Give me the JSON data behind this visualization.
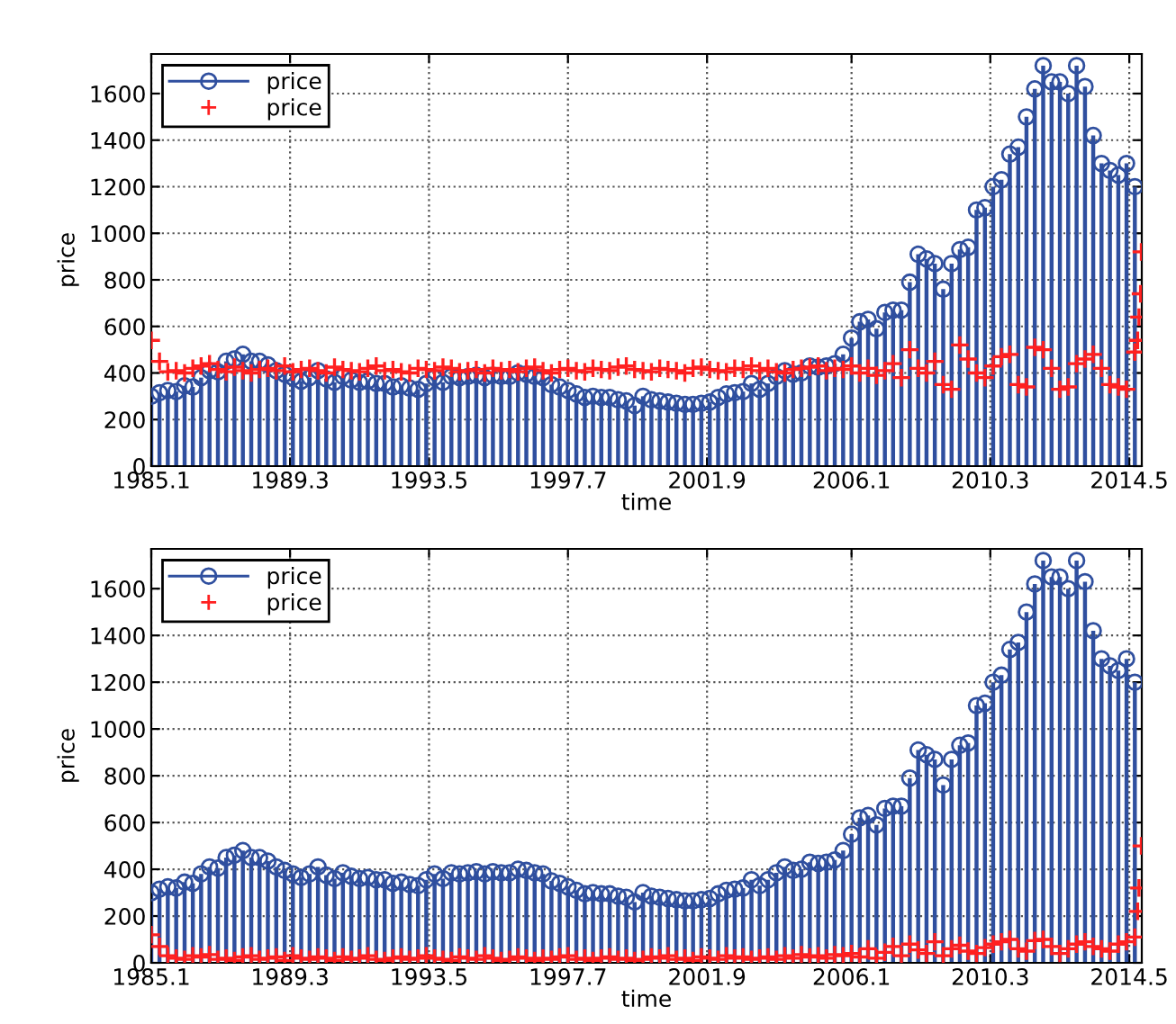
{
  "chart_data": [
    {
      "type": "lollipop",
      "xlabel": "time",
      "ylabel": "price",
      "xlim": [
        "1985-01",
        "2014-09-15"
      ],
      "ylim": [
        0,
        1770
      ],
      "xticks": [
        {
          "value": "1985-01",
          "label": "1985.1"
        },
        {
          "value": "1989-03",
          "label": "1989.3"
        },
        {
          "value": "1993-05",
          "label": "1993.5"
        },
        {
          "value": "1997-07",
          "label": "1997.7"
        },
        {
          "value": "2001-09",
          "label": "2001.9"
        },
        {
          "value": "2006-01",
          "label": "2006.1"
        },
        {
          "value": "2010-03",
          "label": "2010.3"
        },
        {
          "value": "2014-05",
          "label": "2014.5"
        }
      ],
      "yticks": [
        0,
        200,
        400,
        600,
        800,
        1000,
        1200,
        1400,
        1600
      ],
      "grid": true,
      "legend": "top left",
      "series": [
        {
          "name": "price",
          "marker": "circle",
          "color": "#2f4f9f",
          "x": [
            "1985-01",
            "1985-04",
            "1985-07",
            "1985-10",
            "1986-01",
            "1986-04",
            "1986-07",
            "1986-10",
            "1987-01",
            "1987-04",
            "1987-07",
            "1987-10",
            "1988-01",
            "1988-04",
            "1988-07",
            "1988-10",
            "1989-01",
            "1989-04",
            "1989-07",
            "1989-10",
            "1990-01",
            "1990-04",
            "1990-07",
            "1990-10",
            "1991-01",
            "1991-04",
            "1991-07",
            "1991-10",
            "1992-01",
            "1992-04",
            "1992-07",
            "1992-10",
            "1993-01",
            "1993-04",
            "1993-07",
            "1993-10",
            "1994-01",
            "1994-04",
            "1994-07",
            "1994-10",
            "1995-01",
            "1995-04",
            "1995-07",
            "1995-10",
            "1996-01",
            "1996-04",
            "1996-07",
            "1996-10",
            "1997-01",
            "1997-04",
            "1997-07",
            "1997-10",
            "1998-01",
            "1998-04",
            "1998-07",
            "1998-10",
            "1999-01",
            "1999-04",
            "1999-07",
            "1999-10",
            "2000-01",
            "2000-04",
            "2000-07",
            "2000-10",
            "2001-01",
            "2001-04",
            "2001-07",
            "2001-10",
            "2002-01",
            "2002-04",
            "2002-07",
            "2002-10",
            "2003-01",
            "2003-04",
            "2003-07",
            "2003-10",
            "2004-01",
            "2004-04",
            "2004-07",
            "2004-10",
            "2005-01",
            "2005-04",
            "2005-07",
            "2005-10",
            "2006-01",
            "2006-04",
            "2006-07",
            "2006-10",
            "2007-01",
            "2007-04",
            "2007-07",
            "2007-10",
            "2008-01",
            "2008-04",
            "2008-07",
            "2008-10",
            "2009-01",
            "2009-04",
            "2009-07",
            "2009-10",
            "2010-01",
            "2010-04",
            "2010-07",
            "2010-10",
            "2011-01",
            "2011-04",
            "2011-07",
            "2011-10",
            "2012-01",
            "2012-04",
            "2012-07",
            "2012-10",
            "2013-01",
            "2013-04",
            "2013-07",
            "2013-10",
            "2014-01",
            "2014-04",
            "2014-07"
          ],
          "values": [
            300,
            315,
            325,
            320,
            345,
            340,
            380,
            410,
            405,
            450,
            460,
            480,
            450,
            450,
            435,
            410,
            395,
            380,
            365,
            380,
            410,
            375,
            360,
            385,
            370,
            360,
            365,
            355,
            355,
            340,
            345,
            335,
            330,
            355,
            380,
            360,
            385,
            380,
            385,
            390,
            380,
            390,
            385,
            385,
            400,
            395,
            385,
            380,
            350,
            340,
            325,
            310,
            295,
            300,
            295,
            295,
            285,
            280,
            260,
            300,
            285,
            280,
            275,
            270,
            265,
            265,
            270,
            275,
            295,
            310,
            315,
            320,
            355,
            330,
            355,
            385,
            410,
            395,
            400,
            430,
            425,
            430,
            440,
            480,
            550,
            620,
            630,
            590,
            660,
            670,
            670,
            790,
            910,
            890,
            870,
            760,
            870,
            930,
            940,
            1100,
            1110,
            1200,
            1230,
            1340,
            1370,
            1500,
            1620,
            1720,
            1650,
            1650,
            1600,
            1720,
            1630,
            1420,
            1300,
            1270,
            1250,
            1300,
            1200
          ]
        },
        {
          "name": "price",
          "type": "scatter",
          "marker": "cross",
          "color": "#ff2020",
          "x": [
            "1985-01",
            "1985-04",
            "1985-07",
            "1985-10",
            "1986-01",
            "1986-04",
            "1986-07",
            "1986-10",
            "1987-01",
            "1987-04",
            "1987-07",
            "1987-10",
            "1988-01",
            "1988-04",
            "1988-07",
            "1988-10",
            "1989-01",
            "1989-04",
            "1989-07",
            "1989-10",
            "1990-01",
            "1990-04",
            "1990-07",
            "1990-10",
            "1991-01",
            "1991-04",
            "1991-07",
            "1991-10",
            "1992-01",
            "1992-04",
            "1992-07",
            "1992-10",
            "1993-01",
            "1993-04",
            "1993-07",
            "1993-10",
            "1994-01",
            "1994-04",
            "1994-07",
            "1994-10",
            "1995-01",
            "1995-04",
            "1995-07",
            "1995-10",
            "1996-01",
            "1996-04",
            "1996-07",
            "1996-10",
            "1997-01",
            "1997-04",
            "1997-07",
            "1997-10",
            "1998-01",
            "1998-04",
            "1998-07",
            "1998-10",
            "1999-01",
            "1999-04",
            "1999-07",
            "1999-10",
            "2000-01",
            "2000-04",
            "2000-07",
            "2000-10",
            "2001-01",
            "2001-04",
            "2001-07",
            "2001-10",
            "2002-01",
            "2002-04",
            "2002-07",
            "2002-10",
            "2003-01",
            "2003-04",
            "2003-07",
            "2003-10",
            "2004-01",
            "2004-04",
            "2004-07",
            "2004-10",
            "2005-01",
            "2005-04",
            "2005-07",
            "2005-10",
            "2006-01",
            "2006-04",
            "2006-07",
            "2006-10",
            "2007-01",
            "2007-04",
            "2007-07",
            "2007-10",
            "2008-01",
            "2008-04",
            "2008-07",
            "2008-10",
            "2009-01",
            "2009-04",
            "2009-07",
            "2009-10",
            "2010-01",
            "2010-04",
            "2010-07",
            "2010-10",
            "2011-01",
            "2011-04",
            "2011-07",
            "2011-10",
            "2012-01",
            "2012-04",
            "2012-07",
            "2012-10",
            "2013-01",
            "2013-04",
            "2013-07",
            "2013-10",
            "2014-01",
            "2014-04",
            "2014-07",
            "2014-08",
            "2014-08-15",
            "2014-09",
            "2014-09-10"
          ],
          "values": [
            540,
            450,
            405,
            410,
            400,
            420,
            430,
            440,
            415,
            405,
            425,
            410,
            400,
            415,
            420,
            410,
            430,
            405,
            415,
            420,
            410,
            400,
            425,
            415,
            410,
            405,
            420,
            430,
            410,
            415,
            405,
            400,
            420,
            415,
            410,
            425,
            420,
            405,
            410,
            415,
            400,
            420,
            410,
            415,
            405,
            420,
            425,
            410,
            400,
            415,
            420,
            410,
            405,
            420,
            415,
            410,
            425,
            430,
            415,
            410,
            405,
            420,
            415,
            410,
            400,
            420,
            425,
            415,
            410,
            405,
            420,
            415,
            430,
            410,
            420,
            405,
            400,
            415,
            420,
            425,
            430,
            410,
            420,
            415,
            430,
            400,
            420,
            390,
            410,
            440,
            380,
            500,
            420,
            400,
            450,
            350,
            330,
            520,
            460,
            400,
            380,
            430,
            470,
            480,
            350,
            340,
            510,
            500,
            420,
            330,
            340,
            440,
            460,
            480,
            420,
            350,
            340,
            330,
            490,
            540,
            640,
            740,
            920
          ]
        }
      ]
    },
    {
      "type": "lollipop",
      "xlabel": "time",
      "ylabel": "price",
      "xlim": [
        "1985-01",
        "2014-09-15"
      ],
      "ylim": [
        0,
        1770
      ],
      "xticks": [
        {
          "value": "1985-01",
          "label": "1985.1"
        },
        {
          "value": "1989-03",
          "label": "1989.3"
        },
        {
          "value": "1993-05",
          "label": "1993.5"
        },
        {
          "value": "1997-07",
          "label": "1997.7"
        },
        {
          "value": "2001-09",
          "label": "2001.9"
        },
        {
          "value": "2006-01",
          "label": "2006.1"
        },
        {
          "value": "2010-03",
          "label": "2010.3"
        },
        {
          "value": "2014-05",
          "label": "2014.5"
        }
      ],
      "yticks": [
        0,
        200,
        400,
        600,
        800,
        1000,
        1200,
        1400,
        1600
      ],
      "grid": true,
      "legend": "top left",
      "series": [
        {
          "name": "price",
          "marker": "circle",
          "color": "#2f4f9f",
          "x": [
            "1985-01",
            "1985-04",
            "1985-07",
            "1985-10",
            "1986-01",
            "1986-04",
            "1986-07",
            "1986-10",
            "1987-01",
            "1987-04",
            "1987-07",
            "1987-10",
            "1988-01",
            "1988-04",
            "1988-07",
            "1988-10",
            "1989-01",
            "1989-04",
            "1989-07",
            "1989-10",
            "1990-01",
            "1990-04",
            "1990-07",
            "1990-10",
            "1991-01",
            "1991-04",
            "1991-07",
            "1991-10",
            "1992-01",
            "1992-04",
            "1992-07",
            "1992-10",
            "1993-01",
            "1993-04",
            "1993-07",
            "1993-10",
            "1994-01",
            "1994-04",
            "1994-07",
            "1994-10",
            "1995-01",
            "1995-04",
            "1995-07",
            "1995-10",
            "1996-01",
            "1996-04",
            "1996-07",
            "1996-10",
            "1997-01",
            "1997-04",
            "1997-07",
            "1997-10",
            "1998-01",
            "1998-04",
            "1998-07",
            "1998-10",
            "1999-01",
            "1999-04",
            "1999-07",
            "1999-10",
            "2000-01",
            "2000-04",
            "2000-07",
            "2000-10",
            "2001-01",
            "2001-04",
            "2001-07",
            "2001-10",
            "2002-01",
            "2002-04",
            "2002-07",
            "2002-10",
            "2003-01",
            "2003-04",
            "2003-07",
            "2003-10",
            "2004-01",
            "2004-04",
            "2004-07",
            "2004-10",
            "2005-01",
            "2005-04",
            "2005-07",
            "2005-10",
            "2006-01",
            "2006-04",
            "2006-07",
            "2006-10",
            "2007-01",
            "2007-04",
            "2007-07",
            "2007-10",
            "2008-01",
            "2008-04",
            "2008-07",
            "2008-10",
            "2009-01",
            "2009-04",
            "2009-07",
            "2009-10",
            "2010-01",
            "2010-04",
            "2010-07",
            "2010-10",
            "2011-01",
            "2011-04",
            "2011-07",
            "2011-10",
            "2012-01",
            "2012-04",
            "2012-07",
            "2012-10",
            "2013-01",
            "2013-04",
            "2013-07",
            "2013-10",
            "2014-01",
            "2014-04",
            "2014-07"
          ],
          "values": [
            300,
            315,
            325,
            320,
            345,
            340,
            380,
            410,
            405,
            450,
            460,
            480,
            450,
            450,
            435,
            410,
            395,
            380,
            365,
            380,
            410,
            375,
            360,
            385,
            370,
            360,
            365,
            355,
            355,
            340,
            345,
            335,
            330,
            355,
            380,
            360,
            385,
            380,
            385,
            390,
            380,
            390,
            385,
            385,
            400,
            395,
            385,
            380,
            350,
            340,
            325,
            310,
            295,
            300,
            295,
            295,
            285,
            280,
            260,
            300,
            285,
            280,
            275,
            270,
            265,
            265,
            270,
            275,
            295,
            310,
            315,
            320,
            355,
            330,
            355,
            385,
            410,
            395,
            400,
            430,
            425,
            430,
            440,
            480,
            550,
            620,
            630,
            590,
            660,
            670,
            670,
            790,
            910,
            890,
            870,
            760,
            870,
            930,
            940,
            1100,
            1110,
            1200,
            1230,
            1340,
            1370,
            1500,
            1620,
            1720,
            1650,
            1650,
            1600,
            1720,
            1630,
            1420,
            1300,
            1270,
            1250,
            1300,
            1200
          ]
        },
        {
          "name": "price",
          "type": "scatter",
          "marker": "cross",
          "color": "#ff2020",
          "x": [
            "1985-01",
            "1985-04",
            "1985-07",
            "1985-10",
            "1986-01",
            "1986-04",
            "1986-07",
            "1986-10",
            "1987-01",
            "1987-04",
            "1987-07",
            "1987-10",
            "1988-01",
            "1988-04",
            "1988-07",
            "1988-10",
            "1989-01",
            "1989-04",
            "1989-07",
            "1989-10",
            "1990-01",
            "1990-04",
            "1990-07",
            "1990-10",
            "1991-01",
            "1991-04",
            "1991-07",
            "1991-10",
            "1992-01",
            "1992-04",
            "1992-07",
            "1992-10",
            "1993-01",
            "1993-04",
            "1993-07",
            "1993-10",
            "1994-01",
            "1994-04",
            "1994-07",
            "1994-10",
            "1995-01",
            "1995-04",
            "1995-07",
            "1995-10",
            "1996-01",
            "1996-04",
            "1996-07",
            "1996-10",
            "1997-01",
            "1997-04",
            "1997-07",
            "1997-10",
            "1998-01",
            "1998-04",
            "1998-07",
            "1998-10",
            "1999-01",
            "1999-04",
            "1999-07",
            "1999-10",
            "2000-01",
            "2000-04",
            "2000-07",
            "2000-10",
            "2001-01",
            "2001-04",
            "2001-07",
            "2001-10",
            "2002-01",
            "2002-04",
            "2002-07",
            "2002-10",
            "2003-01",
            "2003-04",
            "2003-07",
            "2003-10",
            "2004-01",
            "2004-04",
            "2004-07",
            "2004-10",
            "2005-01",
            "2005-04",
            "2005-07",
            "2005-10",
            "2006-01",
            "2006-04",
            "2006-07",
            "2006-10",
            "2007-01",
            "2007-04",
            "2007-07",
            "2007-10",
            "2008-01",
            "2008-04",
            "2008-07",
            "2008-10",
            "2009-01",
            "2009-04",
            "2009-07",
            "2009-10",
            "2010-01",
            "2010-04",
            "2010-07",
            "2010-10",
            "2011-01",
            "2011-04",
            "2011-07",
            "2011-10",
            "2012-01",
            "2012-04",
            "2012-07",
            "2012-10",
            "2013-01",
            "2013-04",
            "2013-07",
            "2013-10",
            "2014-01",
            "2014-04",
            "2014-07",
            "2014-08",
            "2014-08-15",
            "2014-09-10"
          ],
          "values": [
            120,
            70,
            30,
            20,
            15,
            30,
            25,
            35,
            15,
            20,
            10,
            25,
            30,
            15,
            20,
            25,
            10,
            30,
            20,
            15,
            25,
            20,
            10,
            25,
            15,
            20,
            30,
            15,
            10,
            20,
            25,
            15,
            20,
            30,
            20,
            15,
            10,
            25,
            20,
            15,
            30,
            20,
            10,
            15,
            25,
            20,
            10,
            20,
            15,
            25,
            30,
            15,
            20,
            10,
            20,
            25,
            15,
            20,
            10,
            15,
            25,
            20,
            30,
            15,
            20,
            10,
            25,
            20,
            15,
            30,
            20,
            25,
            15,
            20,
            25,
            15,
            30,
            20,
            35,
            25,
            30,
            20,
            35,
            30,
            40,
            25,
            60,
            20,
            45,
            70,
            30,
            80,
            55,
            40,
            90,
            30,
            60,
            75,
            50,
            40,
            65,
            80,
            90,
            100,
            60,
            50,
            95,
            100,
            70,
            40,
            60,
            80,
            90,
            70,
            60,
            50,
            80,
            90,
            110,
            220,
            320,
            500
          ]
        }
      ]
    }
  ]
}
